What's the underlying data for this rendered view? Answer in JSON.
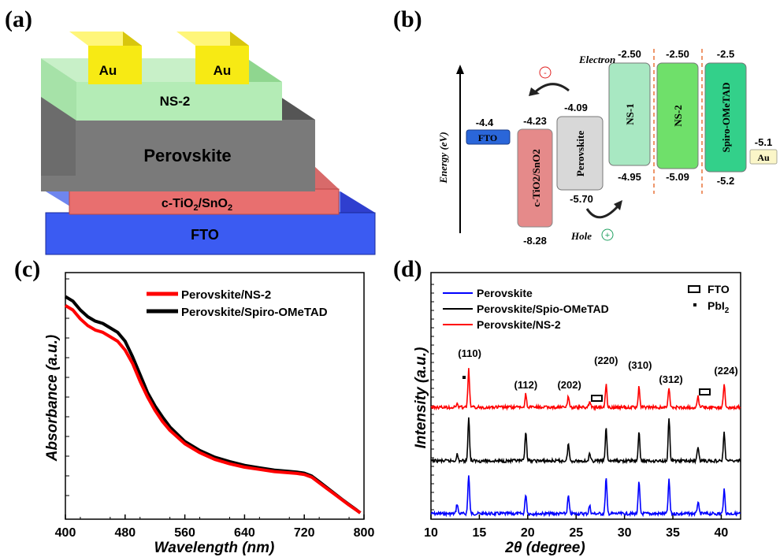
{
  "panels": {
    "a": {
      "label": "(a)",
      "layers": [
        "FTO",
        "c-TiO",
        "2",
        "/SnO",
        "2",
        "Perovskite",
        "NS-2"
      ],
      "electrodes": [
        "Au",
        "Au"
      ]
    },
    "b": {
      "label": "(b)",
      "ylabel": "Energy (eV)",
      "electron_label": "Electron",
      "hole_label": "Hole",
      "minus_sign": "-",
      "plus_sign": "+",
      "materials": [
        {
          "name": "FTO",
          "lumo": "-4.4",
          "homo": null,
          "color": "#2a66d9"
        },
        {
          "name": "c-TiO2/SnO2",
          "lumo": "-4.23",
          "homo": "-8.28",
          "color": "#e58a8a"
        },
        {
          "name": "Perovskite",
          "lumo": "-4.09",
          "homo": "-5.70",
          "color": "#d8d8d8"
        },
        {
          "name": "NS-1",
          "lumo": "-2.50",
          "homo": "-4.95",
          "color": "#a8e8c2"
        },
        {
          "name": "NS-2",
          "lumo": "-2.50",
          "homo": "-5.09",
          "color": "#6fe06a"
        },
        {
          "name": "Spiro-OMeTAD",
          "lumo": "-2.5",
          "homo": "-5.2",
          "color": "#33d08a"
        },
        {
          "name": "Au",
          "lumo": "-5.1",
          "homo": null,
          "color": "#fbf6c8"
        }
      ]
    },
    "c": {
      "label": "(c)",
      "chart_data": {
        "type": "line",
        "xlabel": "Wavelength (nm)",
        "ylabel": "Absorbance (a.u.)",
        "xlim": [
          400,
          800
        ],
        "xticks": [
          400,
          480,
          560,
          640,
          720,
          800
        ],
        "series": [
          {
            "name": "Perovskite/NS-2",
            "color": "#ff0000",
            "x": [
              400,
              410,
              420,
              430,
              440,
              450,
              460,
              470,
              480,
              490,
              500,
              510,
              520,
              530,
              540,
              560,
              580,
              600,
              620,
              640,
              660,
              680,
              700,
              710,
              720,
              730,
              740,
              750,
              760,
              770,
              780,
              790,
              795
            ],
            "y": [
              0.93,
              0.91,
              0.87,
              0.84,
              0.82,
              0.81,
              0.79,
              0.77,
              0.73,
              0.67,
              0.59,
              0.52,
              0.46,
              0.41,
              0.37,
              0.31,
              0.27,
              0.24,
              0.22,
              0.205,
              0.195,
              0.185,
              0.18,
              0.177,
              0.172,
              0.16,
              0.135,
              0.11,
              0.085,
              0.06,
              0.035,
              0.012,
              0.0
            ]
          },
          {
            "name": "Perovskite/Spiro-OMeTAD",
            "color": "#000000",
            "x": [
              400,
              410,
              420,
              430,
              440,
              450,
              460,
              470,
              480,
              490,
              500,
              510,
              520,
              530,
              540,
              560,
              580,
              600,
              620,
              640,
              660,
              680,
              700,
              710,
              720,
              730,
              740,
              750,
              760,
              770,
              780,
              790,
              795
            ],
            "y": [
              0.97,
              0.95,
              0.91,
              0.88,
              0.86,
              0.85,
              0.83,
              0.81,
              0.77,
              0.7,
              0.62,
              0.54,
              0.48,
              0.43,
              0.385,
              0.32,
              0.28,
              0.25,
              0.23,
              0.213,
              0.202,
              0.192,
              0.186,
              0.183,
              0.178,
              0.165,
              0.14,
              0.114,
              0.088,
              0.062,
              0.037,
              0.013,
              0.0
            ]
          }
        ]
      }
    },
    "d": {
      "label": "(d)",
      "legend_fto": "FTO",
      "legend_pbi2": "PbI",
      "legend_pbi2_sub": "2",
      "chart_data": {
        "type": "line",
        "xlabel": "2θ (degree)",
        "ylabel": "Intensity (a.u.)",
        "xlim": [
          10,
          42
        ],
        "xticks": [
          10,
          15,
          20,
          25,
          30,
          35,
          40
        ],
        "peak_labels": [
          "(110)",
          "(112)",
          "(202)",
          "(220)",
          "(310)",
          "(312)",
          "(224)"
        ],
        "series": [
          {
            "name": "Perovskite",
            "color": "#0000ff",
            "peaks": [
              [
                12.7,
                0.25
              ],
              [
                13.9,
                1.0
              ],
              [
                19.8,
                0.5
              ],
              [
                24.2,
                0.45
              ],
              [
                26.4,
                0.2
              ],
              [
                28.1,
                0.9
              ],
              [
                31.5,
                0.8
              ],
              [
                34.6,
                0.85
              ],
              [
                37.6,
                0.3
              ],
              [
                40.3,
                0.6
              ]
            ]
          },
          {
            "name": "Perovskite/Spio-OMeTAD",
            "color": "#000000",
            "peaks": [
              [
                12.7,
                0.15
              ],
              [
                13.9,
                1.0
              ],
              [
                19.8,
                0.7
              ],
              [
                24.2,
                0.4
              ],
              [
                26.4,
                0.15
              ],
              [
                28.1,
                0.75
              ],
              [
                31.5,
                0.65
              ],
              [
                34.6,
                1.0
              ],
              [
                37.6,
                0.35
              ],
              [
                40.3,
                0.65
              ]
            ]
          },
          {
            "name": "Perovskite/NS-2",
            "color": "#ff0000",
            "peaks": [
              [
                12.7,
                0.1
              ],
              [
                13.9,
                1.0
              ],
              [
                19.8,
                0.35
              ],
              [
                24.2,
                0.3
              ],
              [
                26.4,
                0.15
              ],
              [
                28.1,
                0.6
              ],
              [
                31.5,
                0.55
              ],
              [
                34.6,
                0.5
              ],
              [
                37.6,
                0.3
              ],
              [
                40.3,
                0.6
              ]
            ]
          }
        ]
      }
    }
  }
}
